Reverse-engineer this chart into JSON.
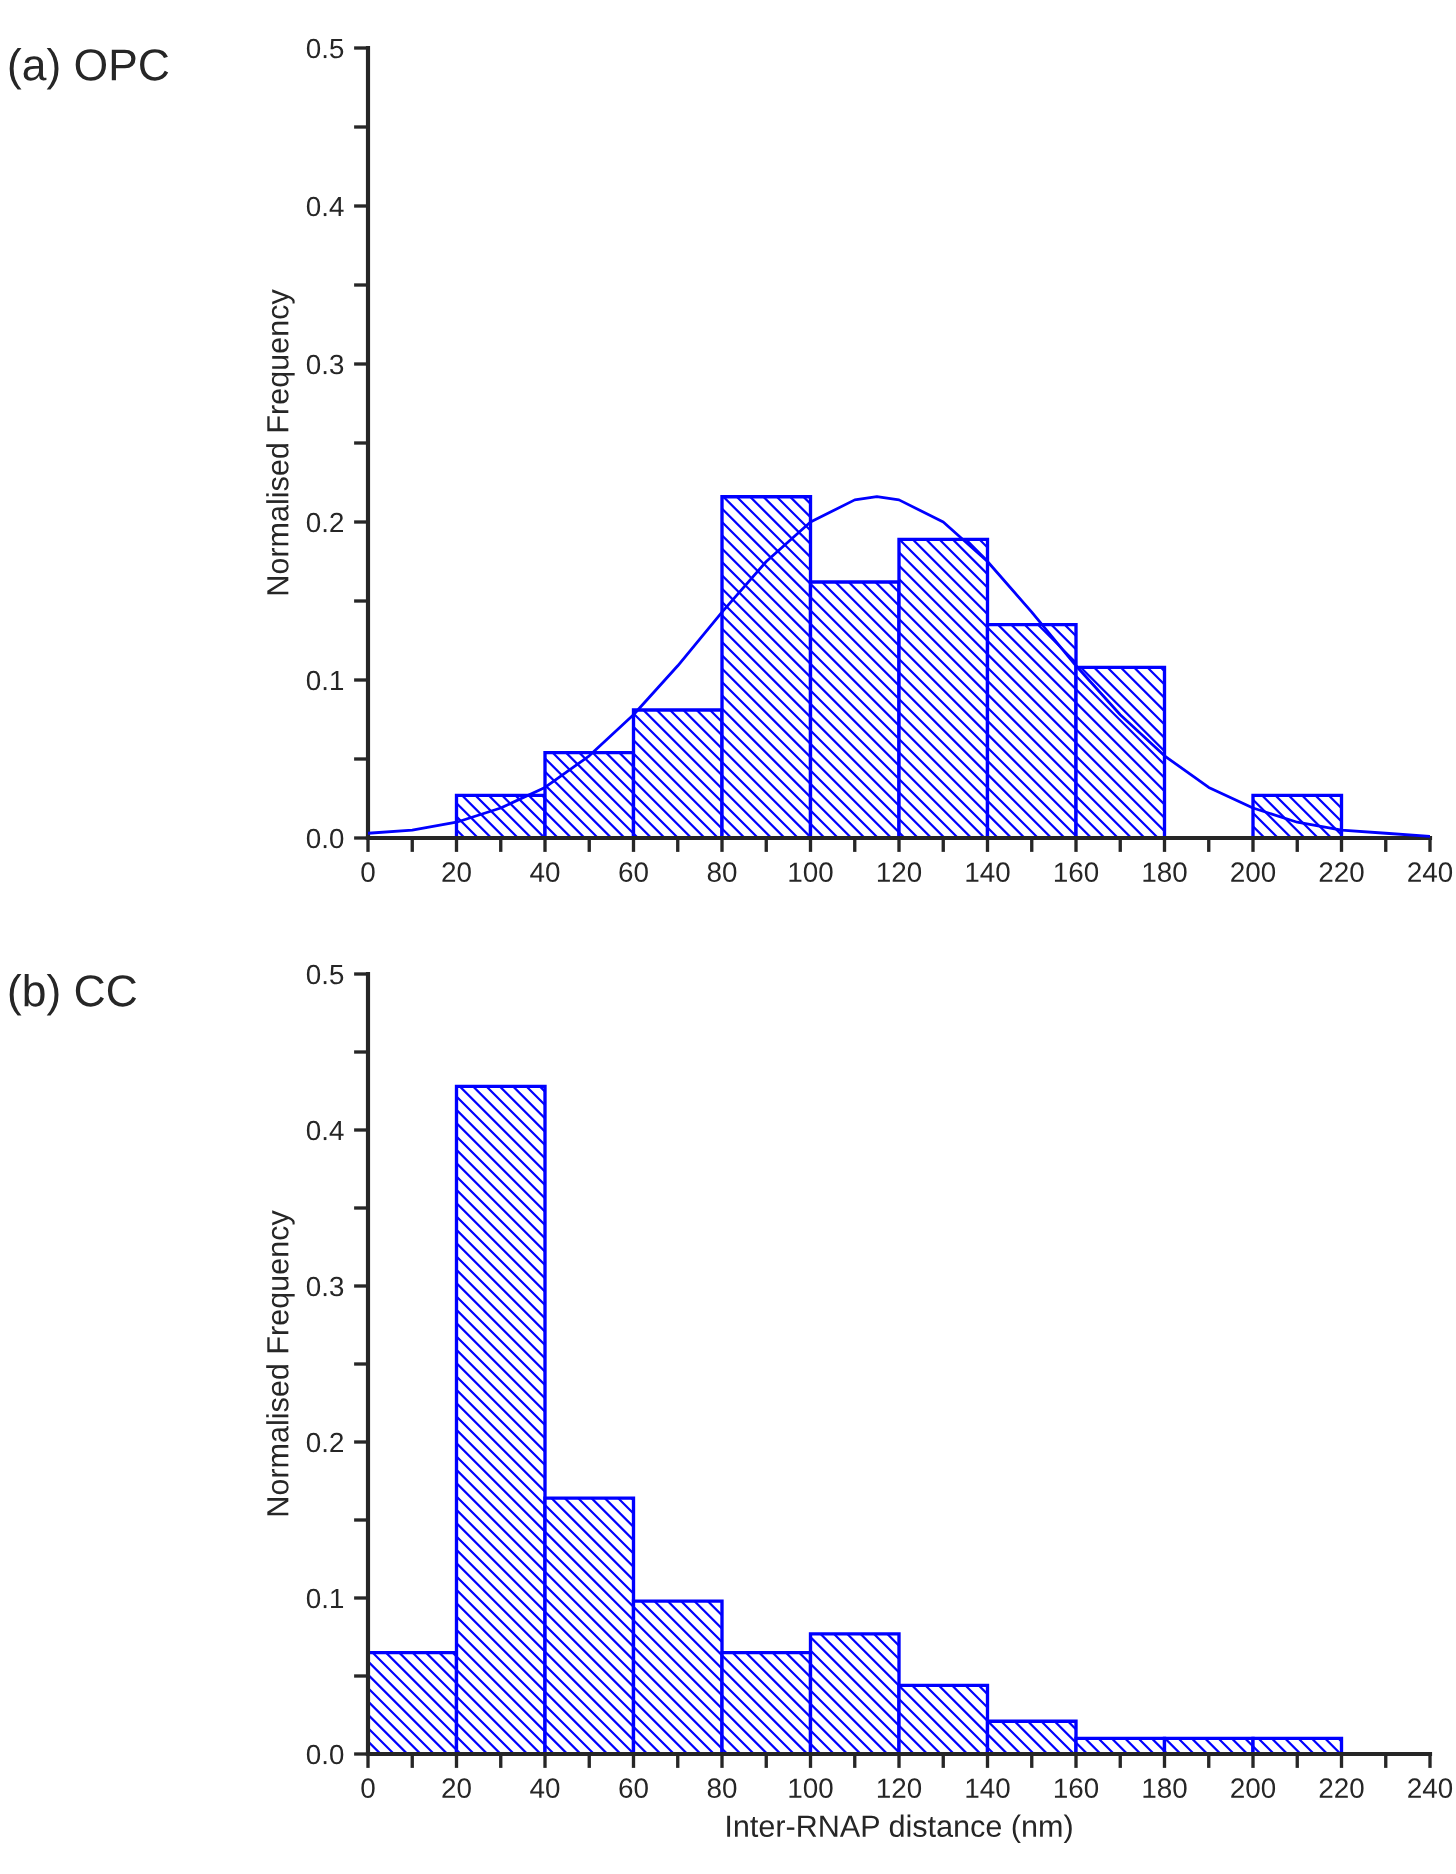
{
  "chart_data": [
    {
      "type": "histogram",
      "title": "(a) OPC",
      "ylabel": "Normalised Frequency",
      "color": "#0000ff",
      "bins": [
        0,
        20,
        40,
        60,
        80,
        100,
        120,
        140,
        160,
        180,
        200,
        220,
        240
      ],
      "values": [
        0,
        0.027,
        0.054,
        0.081,
        0.216,
        0.162,
        0.189,
        0.135,
        0.108,
        0,
        0.027,
        0
      ],
      "series": [
        {
          "type": "line",
          "color": "#0000ff",
          "x": [
            0,
            10,
            20,
            30,
            40,
            50,
            60,
            70,
            80,
            90,
            100,
            110,
            115,
            120,
            130,
            140,
            150,
            160,
            170,
            180,
            190,
            200,
            210,
            220,
            230,
            240
          ],
          "values": [
            0.003,
            0.005,
            0.01,
            0.019,
            0.032,
            0.052,
            0.078,
            0.109,
            0.143,
            0.175,
            0.2,
            0.214,
            0.216,
            0.214,
            0.2,
            0.175,
            0.143,
            0.109,
            0.078,
            0.052,
            0.032,
            0.019,
            0.01,
            0.005,
            0.003,
            0.001
          ]
        }
      ],
      "xlim": [
        0,
        240
      ],
      "ylim": [
        0,
        0.5
      ],
      "xticks": [
        0,
        {
          "value": 10,
          "label": null
        },
        20,
        {
          "value": 30,
          "label": null
        },
        40,
        {
          "value": 50,
          "label": null
        },
        60,
        {
          "value": 70,
          "label": null
        },
        80,
        {
          "value": 90,
          "label": null
        },
        100,
        {
          "value": 110,
          "label": null
        },
        120,
        {
          "value": 130,
          "label": null
        },
        140,
        {
          "value": 150,
          "label": null
        },
        160,
        {
          "value": 170,
          "label": null
        },
        180,
        {
          "value": 190,
          "label": null
        },
        200,
        {
          "value": 210,
          "label": null
        },
        220,
        {
          "value": 230,
          "label": null
        },
        240
      ],
      "yticks": [
        {
          "value": 0,
          "label": "0.0"
        },
        {
          "value": 0.05,
          "label": null
        },
        0.1,
        {
          "value": 0.15,
          "label": null
        },
        0.2,
        {
          "value": 0.25,
          "label": null
        },
        0.3,
        {
          "value": 0.35,
          "label": null
        },
        0.4,
        {
          "value": 0.45,
          "label": null
        },
        0.5
      ]
    },
    {
      "type": "histogram",
      "title": "(b) CC",
      "ylabel": "Normalised Frequency",
      "xlabel": "Inter-RNAP distance (nm)",
      "color": "#0000ff",
      "bins": [
        0,
        20,
        40,
        60,
        80,
        100,
        120,
        140,
        160,
        180,
        200,
        220
      ],
      "values": [
        0.065,
        0.428,
        0.164,
        0.098,
        0.065,
        0.077,
        0.044,
        0.021,
        0.01,
        0.01,
        0.01
      ],
      "xlim": [
        0,
        240
      ],
      "ylim": [
        0,
        0.5
      ],
      "xticks": [
        0,
        {
          "value": 10,
          "label": null
        },
        20,
        {
          "value": 30,
          "label": null
        },
        40,
        {
          "value": 50,
          "label": null
        },
        60,
        {
          "value": 70,
          "label": null
        },
        80,
        {
          "value": 90,
          "label": null
        },
        100,
        {
          "value": 110,
          "label": null
        },
        120,
        {
          "value": 130,
          "label": null
        },
        140,
        {
          "value": 150,
          "label": null
        },
        160,
        {
          "value": 170,
          "label": null
        },
        180,
        {
          "value": 190,
          "label": null
        },
        200,
        {
          "value": 210,
          "label": null
        },
        220,
        {
          "value": 230,
          "label": null
        },
        240
      ],
      "yticks": [
        {
          "value": 0,
          "label": "0.0"
        },
        {
          "value": 0.05,
          "label": null
        },
        0.1,
        {
          "value": 0.15,
          "label": null
        },
        0.2,
        {
          "value": 0.25,
          "label": null
        },
        0.3,
        {
          "value": 0.35,
          "label": null
        },
        0.4,
        {
          "value": 0.45,
          "label": null
        },
        0.5
      ]
    }
  ]
}
